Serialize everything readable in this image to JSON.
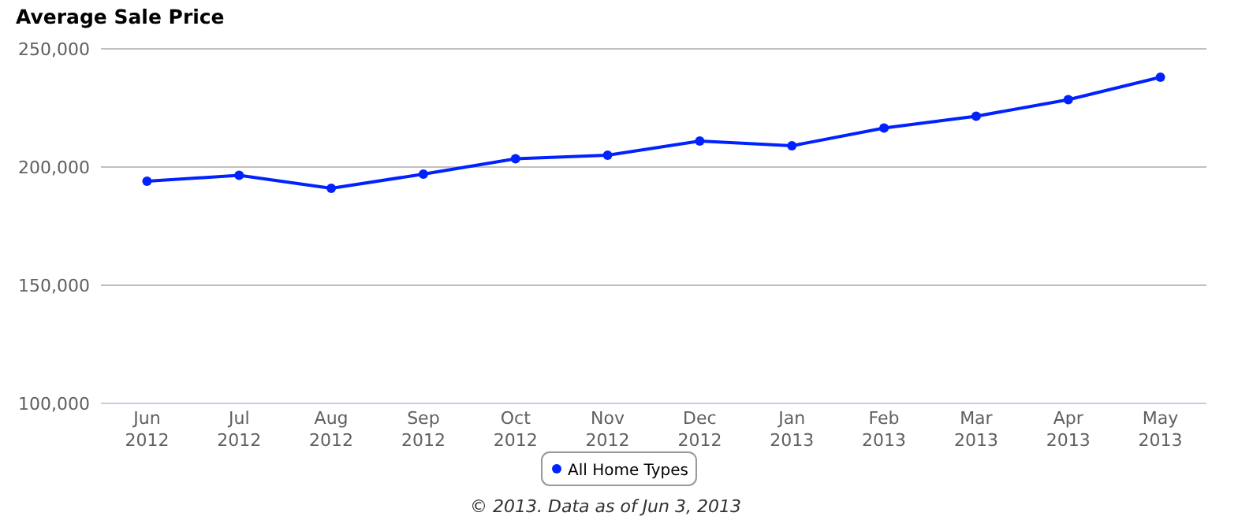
{
  "chart_data": {
    "type": "line",
    "title": "Average Sale Price",
    "categories": [
      "Jun\n2012",
      "Jul\n2012",
      "Aug\n2012",
      "Sep\n2012",
      "Oct\n2012",
      "Nov\n2012",
      "Dec\n2012",
      "Jan\n2013",
      "Feb\n2013",
      "Mar\n2013",
      "Apr\n2013",
      "May\n2013"
    ],
    "series": [
      {
        "name": "All Home Types",
        "color": "#0022ff",
        "values": [
          194000,
          196500,
          191000,
          197000,
          203500,
          205000,
          211000,
          209000,
          216500,
          221500,
          228500,
          238000
        ]
      }
    ],
    "ylim": [
      100000,
      250000
    ],
    "yticks": [
      {
        "value": 100000,
        "label": "100,000"
      },
      {
        "value": 150000,
        "label": "150,000"
      },
      {
        "value": 200000,
        "label": "200,000"
      },
      {
        "value": 250000,
        "label": "250,000"
      }
    ],
    "grid": "y",
    "legend": "bottom",
    "marker": "circle",
    "line_style": "solid",
    "annotations": [
      "© 2013. Data as of Jun 3, 2013"
    ]
  }
}
